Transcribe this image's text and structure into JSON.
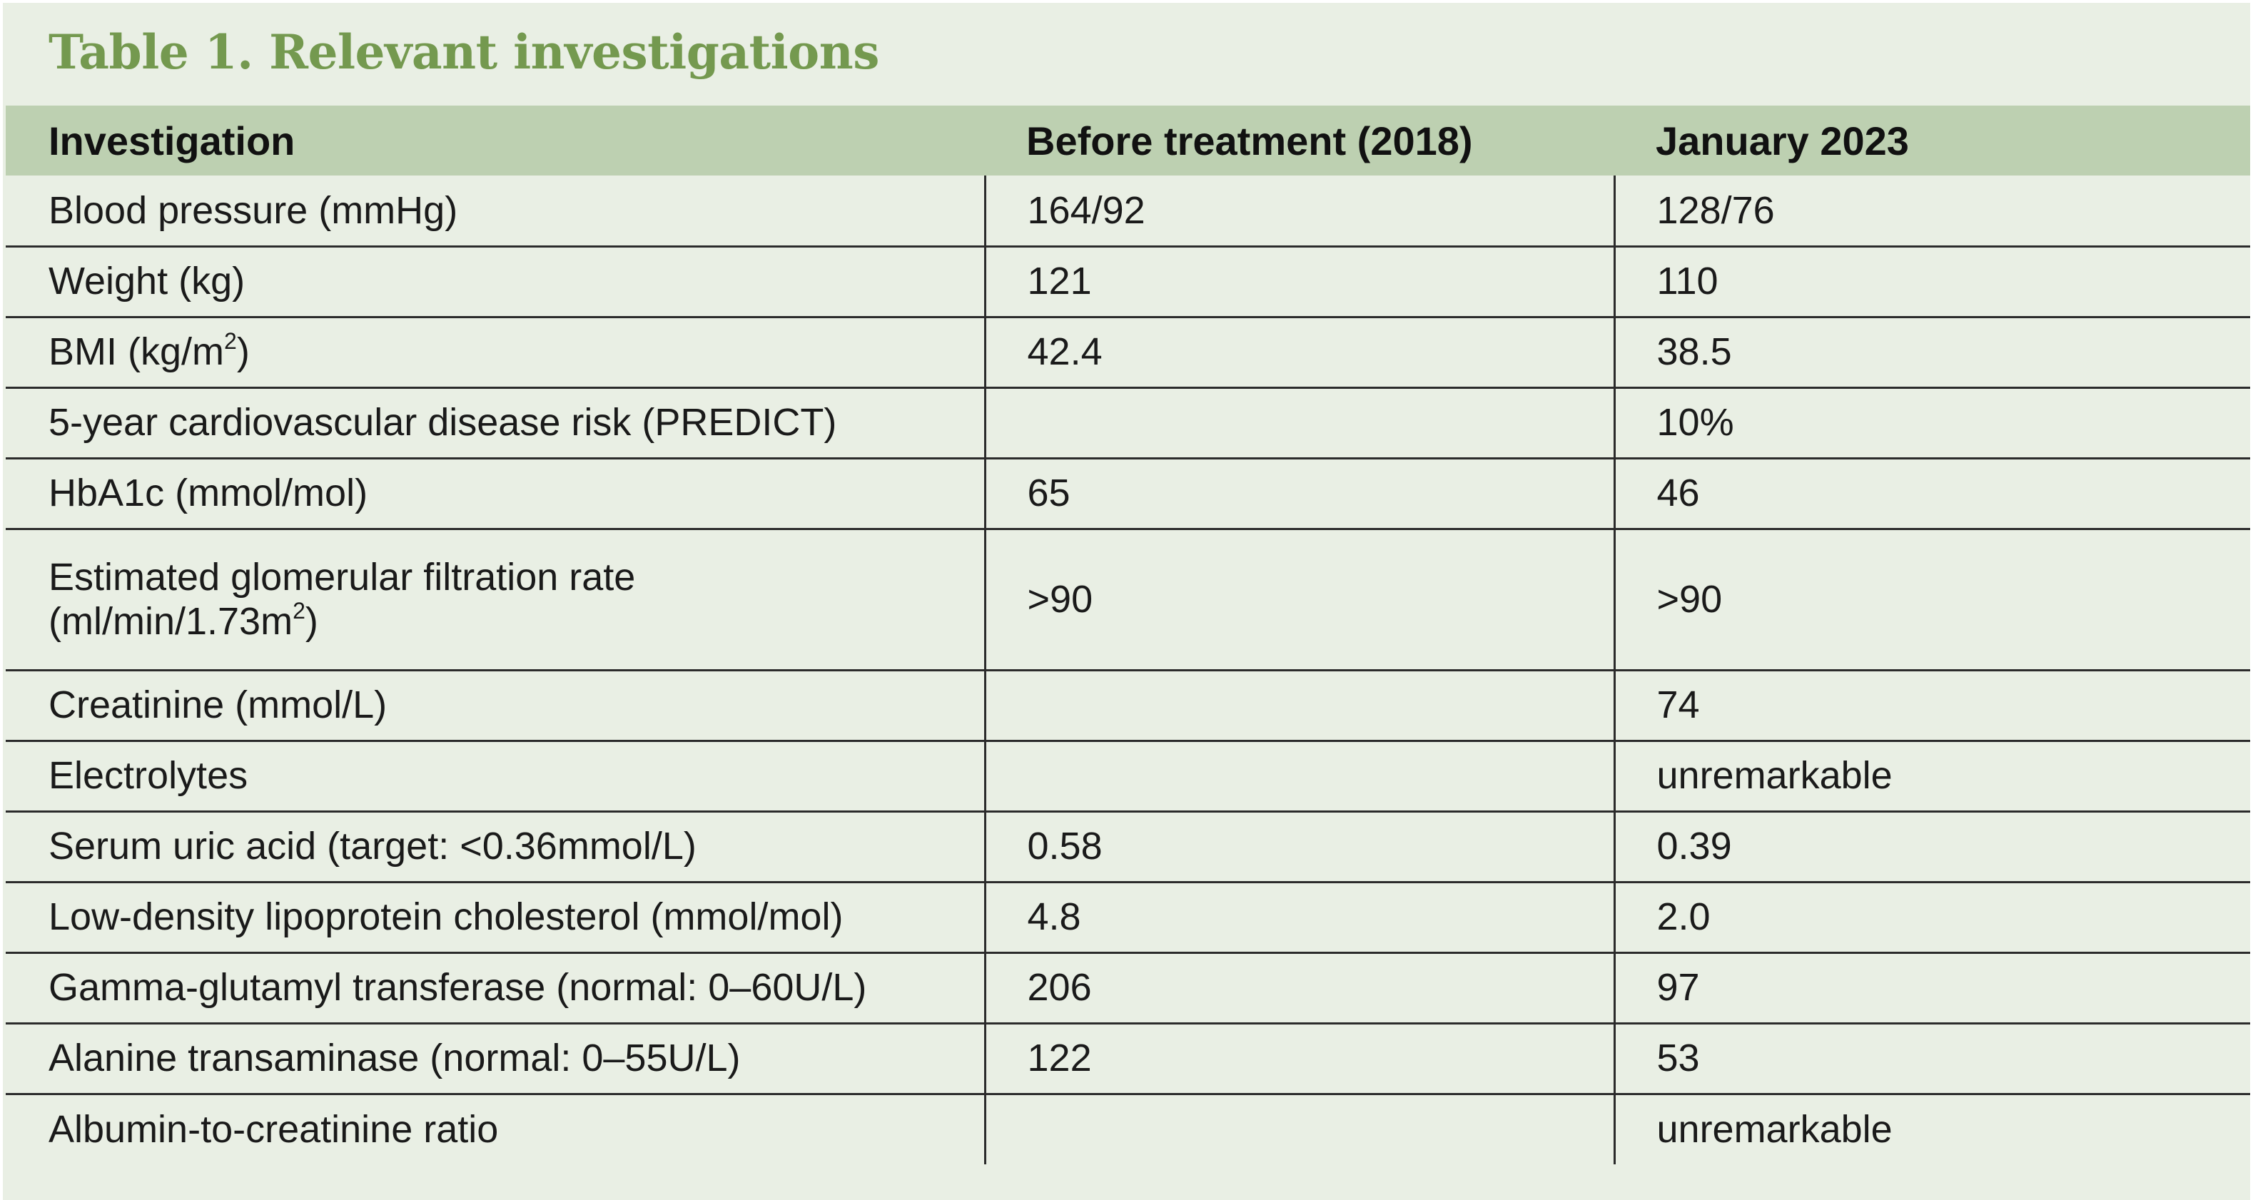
{
  "title": "Table 1. Relevant investigations",
  "columns": [
    "Investigation",
    "Before treatment (2018)",
    "January 2023"
  ],
  "rows": [
    {
      "investigation": "Blood pressure (mmHg)",
      "before": "164/92",
      "jan2023": "128/76"
    },
    {
      "investigation": "Weight (kg)",
      "before": "121",
      "jan2023": "110"
    },
    {
      "investigation_pre": "BMI (kg/m",
      "investigation_sup": "2",
      "investigation_post": ")",
      "before": "42.4",
      "jan2023": "38.5"
    },
    {
      "investigation": "5-year cardiovascular disease risk (PREDICT)",
      "before": "",
      "jan2023": "10%"
    },
    {
      "investigation": "HbA1c (mmol/mol)",
      "before": "65",
      "jan2023": "46"
    },
    {
      "investigation_line1": "Estimated glomerular filtration rate",
      "investigation_pre": "(ml/min/1.73m",
      "investigation_sup": "2",
      "investigation_post": ")",
      "before": ">90",
      "jan2023": ">90"
    },
    {
      "investigation": "Creatinine (mmol/L)",
      "before": "",
      "jan2023": "74"
    },
    {
      "investigation": "Electrolytes",
      "before": "",
      "jan2023": "unremarkable"
    },
    {
      "investigation": "Serum uric acid (target: <0.36mmol/L)",
      "before": "0.58",
      "jan2023": "0.39"
    },
    {
      "investigation": "Low-density lipoprotein cholesterol (mmol/mol)",
      "before": "4.8",
      "jan2023": "2.0"
    },
    {
      "investigation": "Gamma-glutamyl transferase (normal: 0–60U/L)",
      "before": "206",
      "jan2023": "97"
    },
    {
      "investigation": "Alanine transaminase (normal: 0–55U/L)",
      "before": "122",
      "jan2023": "53"
    },
    {
      "investigation": "Albumin-to-creatinine ratio",
      "before": "",
      "jan2023": "unremarkable"
    }
  ]
}
